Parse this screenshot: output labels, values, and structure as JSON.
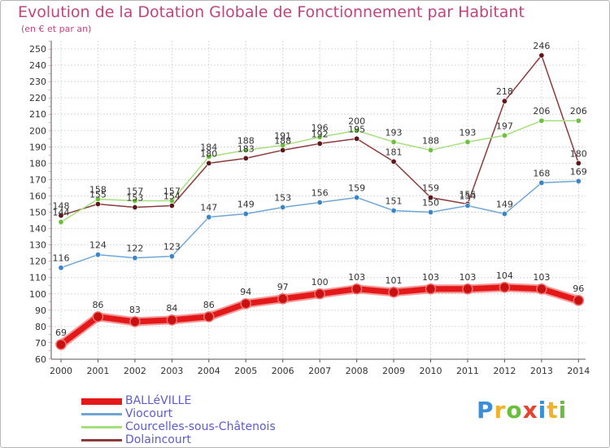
{
  "title": "Evolution de la Dotation Globale de Fonctionnement par Habitant",
  "subtitle": "(en € et par an)",
  "logo": {
    "text": "Proxiti",
    "colors": [
      "#3b8ed8",
      "#f2b12a",
      "#6abf3a",
      "#e5432f",
      "#3b8ed8",
      "#f2b12a",
      "#6abf3a"
    ]
  },
  "chart_data": {
    "type": "line",
    "title": "Evolution de la Dotation Globale de Fonctionnement par Habitant",
    "ylabel": "(en € et par an)",
    "xlabel": "",
    "x": [
      "2000",
      "2001",
      "2002",
      "2003",
      "2004",
      "2005",
      "2006",
      "2007",
      "2008",
      "2009",
      "2010",
      "2011",
      "2012",
      "2013",
      "2014"
    ],
    "ylim": [
      60,
      250
    ],
    "yticks": [
      60,
      70,
      80,
      90,
      100,
      110,
      120,
      130,
      140,
      150,
      160,
      170,
      180,
      190,
      200,
      210,
      220,
      230,
      240,
      250
    ],
    "grid": true,
    "legend_position": "bottom-left",
    "series": [
      {
        "name": "BALLéVILLE",
        "color": "#e41818",
        "marker": "#c81010",
        "values": [
          69,
          86,
          83,
          84,
          86,
          94,
          97,
          100,
          103,
          101,
          103,
          103,
          104,
          103,
          96
        ]
      },
      {
        "name": "Viocourt",
        "color": "#6fa6d6",
        "marker": "#3a85c9",
        "values": [
          116,
          124,
          122,
          123,
          147,
          149,
          153,
          156,
          159,
          151,
          150,
          154,
          149,
          168,
          169
        ]
      },
      {
        "name": "Courcelles-sous-Châtenois",
        "color": "#a6df7e",
        "marker": "#6cc23c",
        "values": [
          144,
          158,
          157,
          157,
          184,
          188,
          191,
          196,
          200,
          193,
          188,
          193,
          197,
          206,
          206
        ]
      },
      {
        "name": "Dolaincourt",
        "color": "#8b3b3b",
        "marker": "#5e1616",
        "values": [
          148,
          155,
          153,
          154,
          180,
          183,
          188,
          192,
          195,
          181,
          159,
          155,
          218,
          246,
          180
        ]
      }
    ]
  }
}
